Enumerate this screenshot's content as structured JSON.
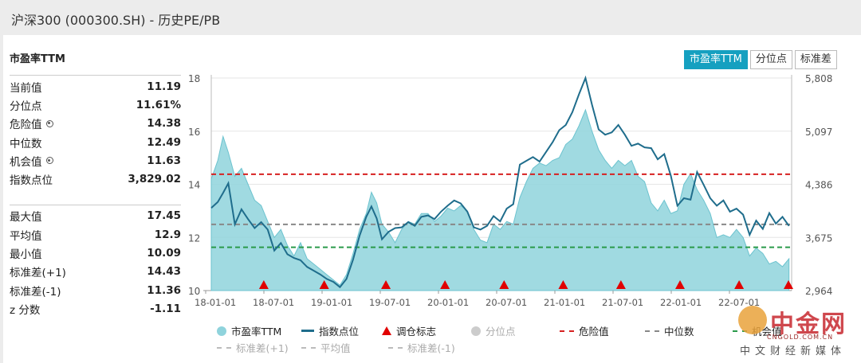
{
  "window": {
    "title": "沪深300 (000300.SH) - 历史PE/PB"
  },
  "stats": {
    "heading": "市盈率TTM",
    "group1": [
      {
        "label": "当前值",
        "value": "11.19"
      },
      {
        "label": "分位点",
        "value": "11.61%"
      },
      {
        "label": "危险值",
        "value": "14.38",
        "gear": true
      },
      {
        "label": "中位数",
        "value": "12.49"
      },
      {
        "label": "机会值",
        "value": "11.63",
        "gear": true
      },
      {
        "label": "指数点位",
        "value": "3,829.02"
      }
    ],
    "group2": [
      {
        "label": "最大值",
        "value": "17.45"
      },
      {
        "label": "平均值",
        "value": "12.9"
      },
      {
        "label": "最小值",
        "value": "10.09"
      },
      {
        "label": "标准差(+1)",
        "value": "14.43"
      },
      {
        "label": "标准差(-1)",
        "value": "11.36"
      },
      {
        "label": "z 分数",
        "value": "-1.11"
      }
    ]
  },
  "tabs": [
    {
      "label": "市盈率TTM",
      "active": true
    },
    {
      "label": "分位点",
      "active": false
    },
    {
      "label": "标准差",
      "active": false
    }
  ],
  "legend": {
    "row1": [
      {
        "label": "市盈率TTM",
        "marker": "dot",
        "color": "#8fd3dc",
        "dim": false
      },
      {
        "label": "指数点位",
        "marker": "line",
        "color": "#1f6d8c",
        "dim": false
      },
      {
        "label": "调仓标志",
        "marker": "triangle",
        "color": "#e10000",
        "dim": false
      },
      {
        "label": "分位点",
        "marker": "dot",
        "color": "#cccccc",
        "dim": true
      },
      {
        "label": "危险值",
        "marker": "dash",
        "color": "#d62020",
        "dim": false
      },
      {
        "label": "中位数",
        "marker": "dash",
        "color": "#888888",
        "dim": false
      },
      {
        "label": "机会值",
        "marker": "dash",
        "color": "#2a9a4a",
        "dim": false
      }
    ],
    "row2": [
      {
        "label": "标准差(+1)",
        "marker": "dash",
        "color": "#bbbbbb",
        "dim": true
      },
      {
        "label": "平均值",
        "marker": "dash",
        "color": "#bbbbbb",
        "dim": true
      },
      {
        "label": "标准差(-1)",
        "marker": "dash",
        "color": "#bbbbbb",
        "dim": true
      }
    ]
  },
  "watermark": {
    "name": "中金网",
    "domain": "CNGOLD.COM.CN",
    "tagline": "中文财经新媒体"
  },
  "chart_data": {
    "type": "area",
    "x_ticks": [
      "18-01-01",
      "18-07-01",
      "19-01-01",
      "19-07-01",
      "20-01-01",
      "20-07-01",
      "21-01-01",
      "21-07-01",
      "22-01-01",
      "22-07-01"
    ],
    "y_left": {
      "min": 10,
      "max": 18,
      "ticks": [
        10,
        12,
        14,
        16,
        18
      ]
    },
    "y_right": {
      "min": 2964,
      "max": 5808,
      "ticks": [
        "2,964",
        "3,675",
        "4,386",
        "5,097",
        "5,808"
      ]
    },
    "reference_lines": [
      {
        "name": "危险值",
        "value": 14.38,
        "color": "#d62020"
      },
      {
        "name": "中位数",
        "value": 12.49,
        "color": "#888888"
      },
      {
        "name": "机会值",
        "value": 11.63,
        "color": "#2a9a4a"
      }
    ],
    "pe_series": {
      "name": "市盈率TTM",
      "color": "#8fd3dc",
      "points": [
        [
          0,
          14.2
        ],
        [
          0.5,
          14.9
        ],
        [
          0.9,
          15.8
        ],
        [
          1.3,
          15.2
        ],
        [
          1.8,
          14.3
        ],
        [
          2.3,
          14.6
        ],
        [
          2.8,
          14.0
        ],
        [
          3.3,
          13.4
        ],
        [
          3.8,
          13.2
        ],
        [
          4.3,
          12.6
        ],
        [
          4.8,
          12.0
        ],
        [
          5.3,
          12.3
        ],
        [
          5.8,
          11.7
        ],
        [
          6.3,
          11.3
        ],
        [
          6.8,
          11.8
        ],
        [
          7.3,
          11.2
        ],
        [
          7.8,
          11.0
        ],
        [
          8.3,
          10.8
        ],
        [
          8.8,
          10.6
        ],
        [
          9.3,
          10.4
        ],
        [
          9.8,
          10.2
        ],
        [
          10.3,
          10.6
        ],
        [
          10.8,
          11.4
        ],
        [
          11.3,
          12.3
        ],
        [
          11.8,
          12.9
        ],
        [
          12.2,
          13.7
        ],
        [
          12.6,
          13.3
        ],
        [
          13.0,
          12.5
        ],
        [
          13.5,
          12.2
        ],
        [
          14.0,
          11.8
        ],
        [
          14.5,
          12.3
        ],
        [
          15.0,
          12.6
        ],
        [
          15.5,
          12.5
        ],
        [
          16.0,
          12.9
        ],
        [
          16.5,
          12.9
        ],
        [
          17.0,
          12.6
        ],
        [
          17.5,
          12.8
        ],
        [
          18.0,
          13.1
        ],
        [
          18.5,
          13.0
        ],
        [
          19.0,
          13.2
        ],
        [
          19.5,
          13.0
        ],
        [
          20.0,
          12.3
        ],
        [
          20.5,
          11.9
        ],
        [
          21.0,
          11.8
        ],
        [
          21.5,
          12.5
        ],
        [
          22.0,
          12.3
        ],
        [
          22.5,
          12.6
        ],
        [
          23.0,
          12.5
        ],
        [
          23.5,
          13.5
        ],
        [
          24.0,
          14.1
        ],
        [
          24.5,
          14.6
        ],
        [
          25.0,
          14.8
        ],
        [
          25.5,
          14.7
        ],
        [
          26.0,
          14.9
        ],
        [
          26.5,
          15.0
        ],
        [
          27.0,
          15.5
        ],
        [
          27.5,
          15.7
        ],
        [
          28.0,
          16.2
        ],
        [
          28.5,
          16.8
        ],
        [
          29.0,
          16.0
        ],
        [
          29.5,
          15.3
        ],
        [
          30.0,
          14.9
        ],
        [
          30.5,
          14.6
        ],
        [
          31.0,
          14.9
        ],
        [
          31.5,
          14.7
        ],
        [
          32.0,
          14.9
        ],
        [
          32.5,
          14.3
        ],
        [
          33.0,
          14.1
        ],
        [
          33.5,
          13.3
        ],
        [
          34.0,
          13.0
        ],
        [
          34.5,
          13.4
        ],
        [
          35.0,
          12.9
        ],
        [
          35.5,
          13.0
        ],
        [
          36.0,
          14.0
        ],
        [
          36.5,
          14.4
        ],
        [
          37.0,
          13.8
        ],
        [
          37.5,
          13.4
        ],
        [
          38.0,
          12.9
        ],
        [
          38.5,
          12.0
        ],
        [
          39.0,
          12.1
        ],
        [
          39.5,
          12.0
        ],
        [
          40.0,
          12.3
        ],
        [
          40.5,
          12.0
        ],
        [
          41.0,
          11.3
        ],
        [
          41.5,
          11.6
        ],
        [
          42.0,
          11.4
        ],
        [
          42.5,
          11.0
        ],
        [
          43.0,
          11.1
        ],
        [
          43.5,
          10.9
        ],
        [
          44.0,
          11.2
        ]
      ]
    },
    "index_series": {
      "name": "指数点位",
      "color": "#1f6d8c",
      "points": [
        [
          0,
          4070
        ],
        [
          0.5,
          4150
        ],
        [
          0.9,
          4270
        ],
        [
          1.3,
          4400
        ],
        [
          1.8,
          3850
        ],
        [
          2.3,
          4050
        ],
        [
          2.8,
          3920
        ],
        [
          3.3,
          3800
        ],
        [
          3.8,
          3880
        ],
        [
          4.3,
          3780
        ],
        [
          4.8,
          3500
        ],
        [
          5.3,
          3600
        ],
        [
          5.8,
          3450
        ],
        [
          6.3,
          3400
        ],
        [
          6.8,
          3370
        ],
        [
          7.3,
          3280
        ],
        [
          7.8,
          3230
        ],
        [
          8.3,
          3180
        ],
        [
          8.8,
          3120
        ],
        [
          9.3,
          3080
        ],
        [
          9.8,
          3010
        ],
        [
          10.3,
          3120
        ],
        [
          10.8,
          3380
        ],
        [
          11.3,
          3700
        ],
        [
          11.8,
          3950
        ],
        [
          12.2,
          4090
        ],
        [
          12.6,
          3930
        ],
        [
          13.0,
          3650
        ],
        [
          13.5,
          3750
        ],
        [
          14.0,
          3800
        ],
        [
          14.5,
          3810
        ],
        [
          15.0,
          3880
        ],
        [
          15.5,
          3830
        ],
        [
          16.0,
          3950
        ],
        [
          16.5,
          3970
        ],
        [
          17.0,
          3920
        ],
        [
          17.5,
          4020
        ],
        [
          18.0,
          4100
        ],
        [
          18.5,
          4170
        ],
        [
          19.0,
          4130
        ],
        [
          19.5,
          4020
        ],
        [
          20.0,
          3810
        ],
        [
          20.5,
          3780
        ],
        [
          21.0,
          3830
        ],
        [
          21.5,
          3960
        ],
        [
          22.0,
          3890
        ],
        [
          22.5,
          4060
        ],
        [
          23.0,
          4120
        ],
        [
          23.5,
          4650
        ],
        [
          24.0,
          4700
        ],
        [
          24.5,
          4750
        ],
        [
          25.0,
          4690
        ],
        [
          25.5,
          4820
        ],
        [
          26.0,
          4950
        ],
        [
          26.5,
          5110
        ],
        [
          27.0,
          5180
        ],
        [
          27.5,
          5350
        ],
        [
          28.0,
          5590
        ],
        [
          28.5,
          5808
        ],
        [
          29.0,
          5450
        ],
        [
          29.5,
          5120
        ],
        [
          30.0,
          5050
        ],
        [
          30.5,
          5080
        ],
        [
          31.0,
          5180
        ],
        [
          31.5,
          5050
        ],
        [
          32.0,
          4900
        ],
        [
          32.5,
          4930
        ],
        [
          33.0,
          4880
        ],
        [
          33.5,
          4870
        ],
        [
          34.0,
          4720
        ],
        [
          34.5,
          4790
        ],
        [
          35.0,
          4500
        ],
        [
          35.5,
          4100
        ],
        [
          36.0,
          4200
        ],
        [
          36.5,
          4180
        ],
        [
          37.0,
          4550
        ],
        [
          37.5,
          4380
        ],
        [
          38.0,
          4200
        ],
        [
          38.5,
          4100
        ],
        [
          39.0,
          4170
        ],
        [
          39.5,
          4020
        ],
        [
          40.0,
          4060
        ],
        [
          40.5,
          3980
        ],
        [
          41.0,
          3710
        ],
        [
          41.5,
          3900
        ],
        [
          42.0,
          3790
        ],
        [
          42.5,
          4000
        ],
        [
          43.0,
          3860
        ],
        [
          43.5,
          3950
        ],
        [
          44.0,
          3829
        ]
      ]
    },
    "rebalance_markers": [
      4,
      8.6,
      13.3,
      17.8,
      22.3,
      26.8,
      31.2,
      35.7,
      40.2,
      44.2
    ]
  }
}
